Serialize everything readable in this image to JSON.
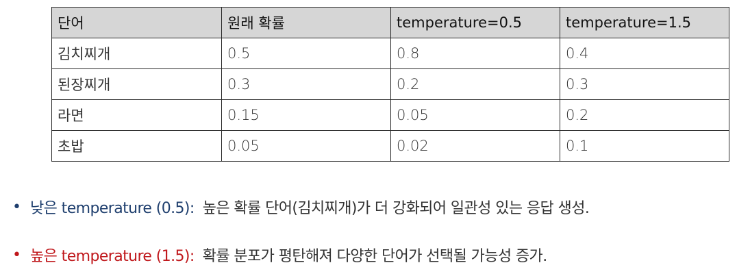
{
  "table": {
    "headers": [
      "단어",
      "원래 확률",
      "temperature=0.5",
      "temperature=1.5"
    ],
    "rows": [
      [
        "김치찌개",
        "0.5",
        "0.8",
        "0.4"
      ],
      [
        "된장찌개",
        "0.3",
        "0.2",
        "0.3"
      ],
      [
        "라면",
        "0.15",
        "0.05",
        "0.2"
      ],
      [
        "초밥",
        "0.05",
        "0.02",
        "0.1"
      ]
    ]
  },
  "bullets": [
    {
      "dot": "•",
      "lead": "낮은 temperature (0.5):",
      "text": "높은 확률 단어(김치찌개)가 더 강화되어 일관성 있는 응답 생성.",
      "color": "#1f3f6e"
    },
    {
      "dot": "•",
      "lead": "높은 temperature (1.5):",
      "text": "확률 분포가 평탄해져 다양한 단어가 선택될 가능성 증가.",
      "color": "#c0181c"
    }
  ]
}
